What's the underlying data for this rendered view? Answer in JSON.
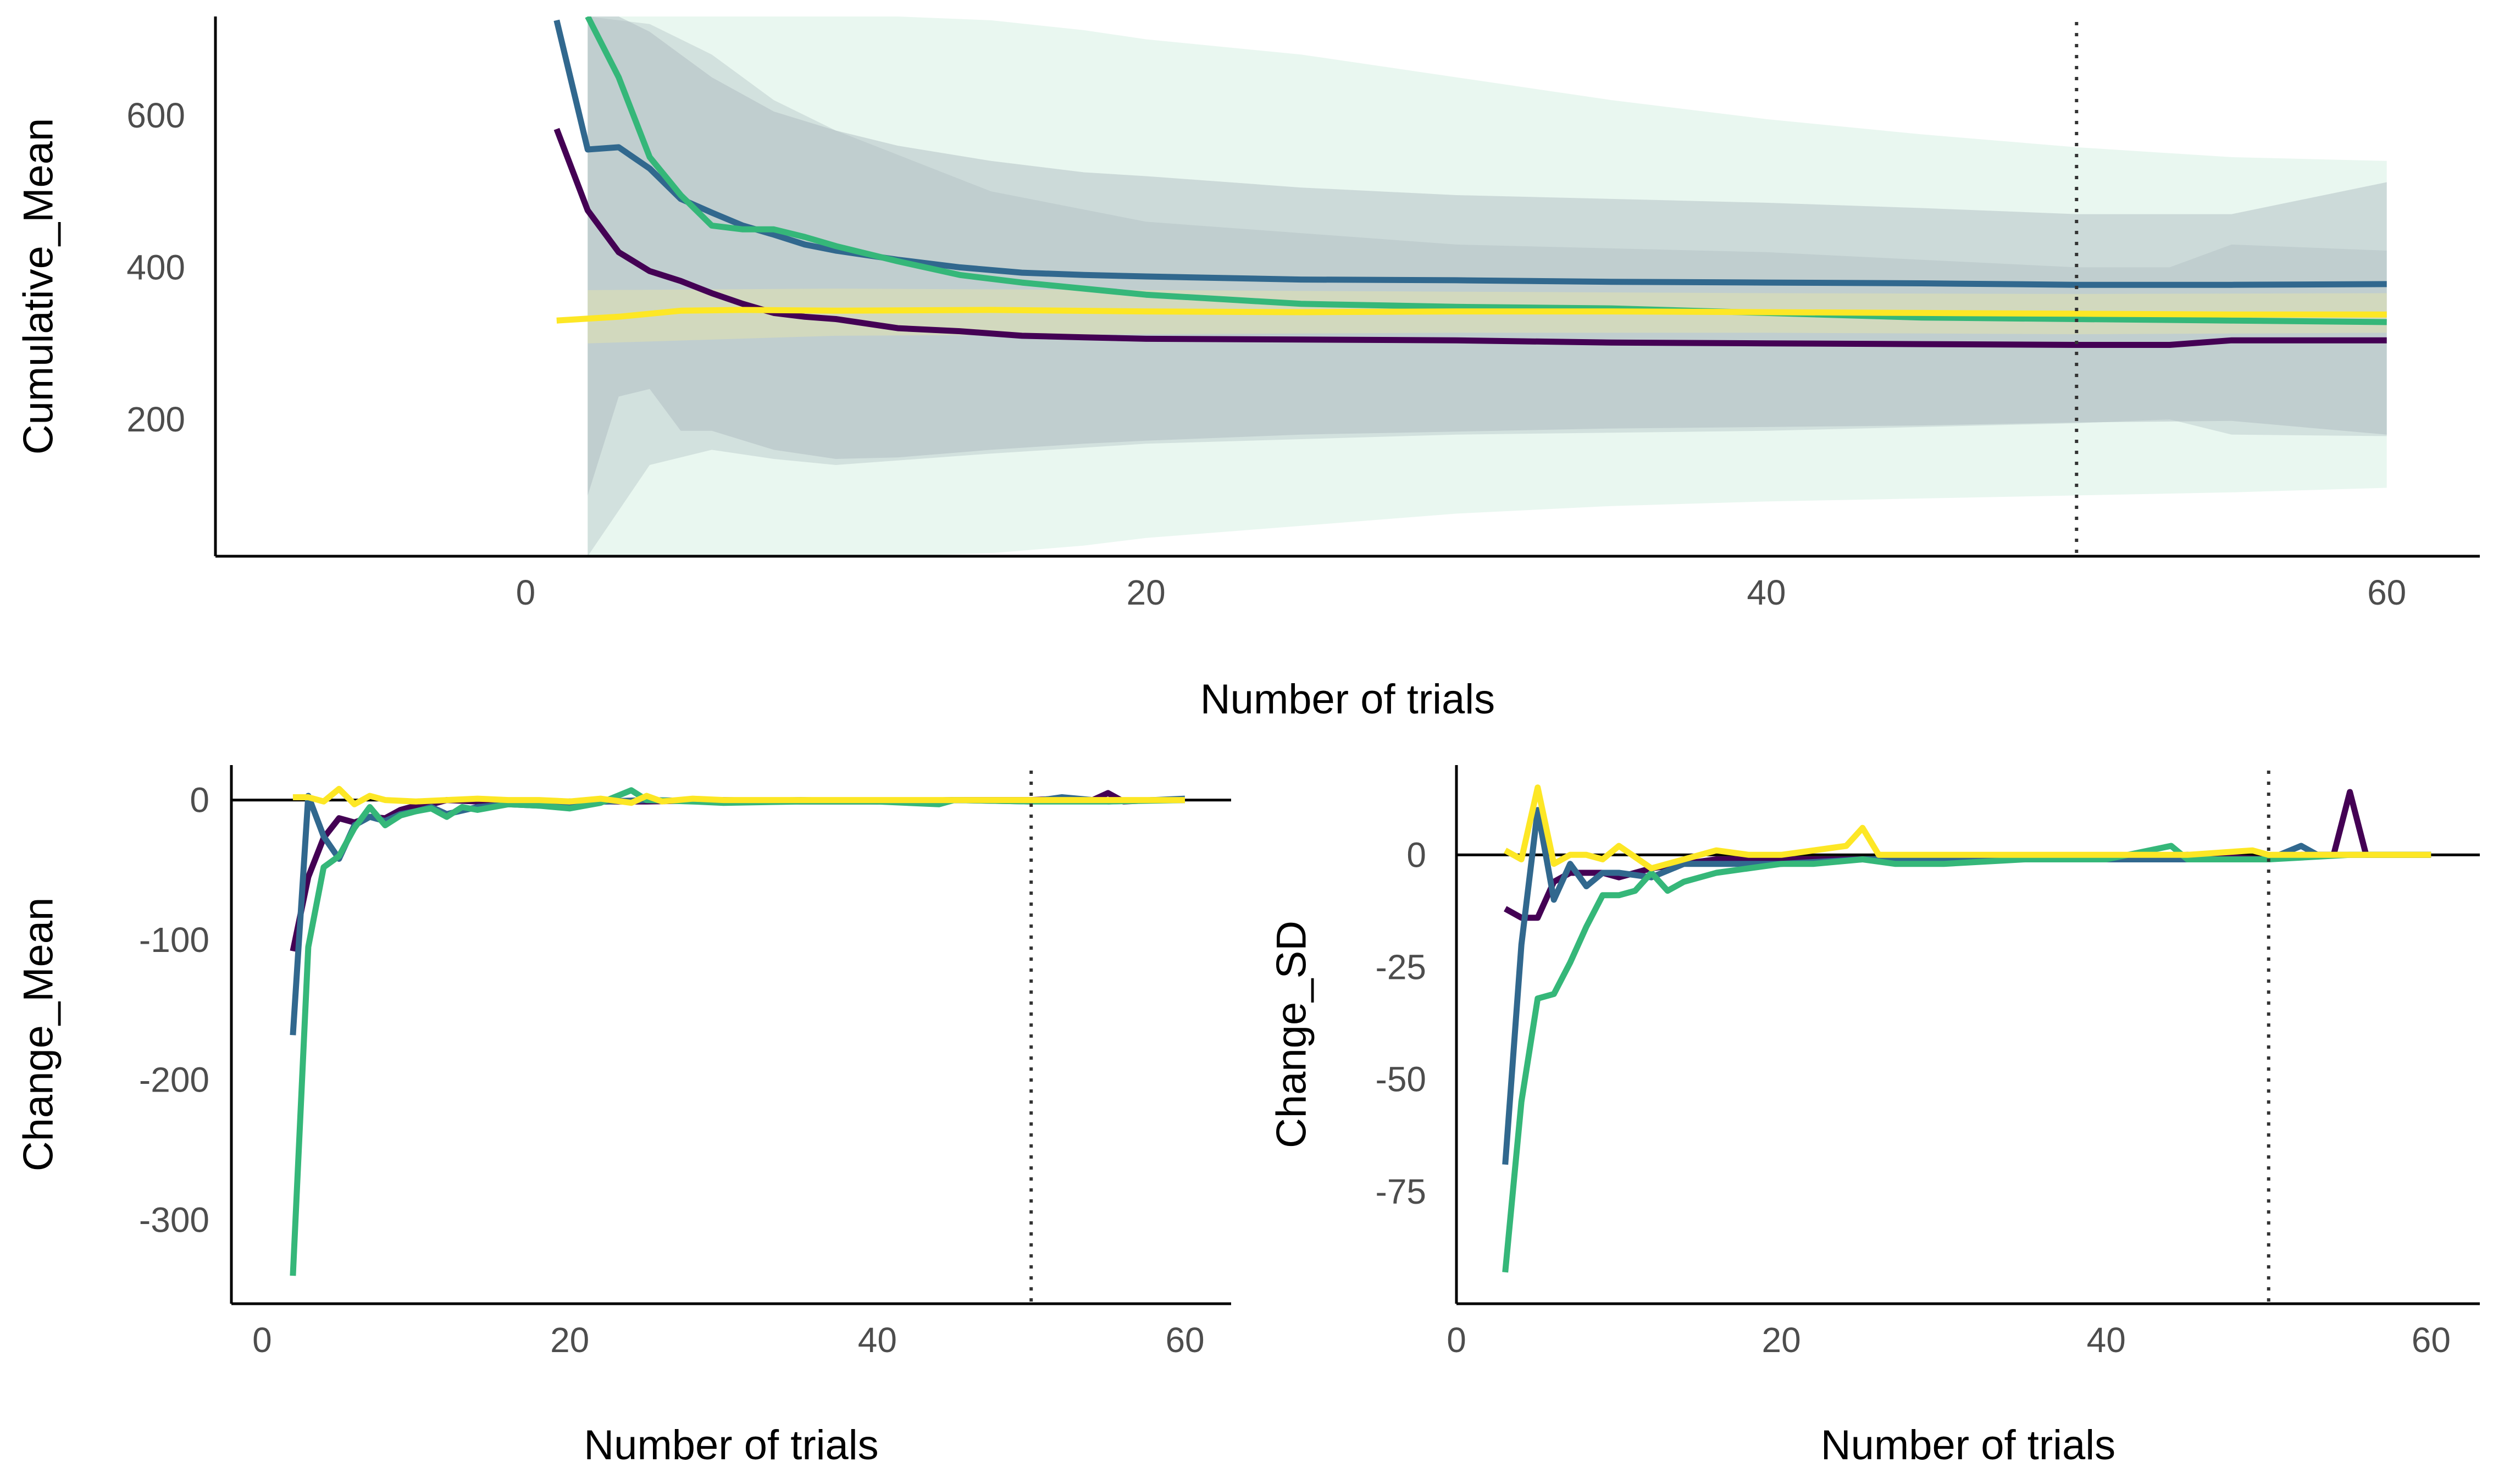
{
  "colors": {
    "series_1": "#440154",
    "series_2": "#31688E",
    "series_3": "#35B779",
    "series_4": "#FDE725",
    "band_light": "#D7F0E3",
    "band_dark": "#A9B6BD",
    "reference_line": "#333333",
    "axis": "#000000"
  },
  "chart_data": [
    {
      "type": "line",
      "xlabel": "Number of trials",
      "ylabel": "Cumulative_Mean",
      "xlim": [
        -10,
        63
      ],
      "ylim": [
        20,
        730
      ],
      "xticks": [
        0,
        20,
        40,
        60
      ],
      "yticks": [
        200,
        400,
        600
      ],
      "reference_x": 50,
      "bands": [
        {
          "x": [
            2,
            3,
            4,
            5,
            6,
            8,
            10,
            12,
            15,
            18,
            20,
            25,
            30,
            35,
            40,
            45,
            50,
            55,
            60
          ],
          "lower": [
            20,
            20,
            20,
            20,
            20,
            20,
            20,
            20,
            24,
            34,
            44,
            60,
            76,
            86,
            92,
            96,
            100,
            104,
            110
          ],
          "upper": [
            730,
            730,
            730,
            730,
            730,
            730,
            730,
            730,
            725,
            712,
            700,
            680,
            650,
            620,
            595,
            575,
            558,
            545,
            540
          ]
        },
        {
          "x": [
            2,
            3,
            4,
            5,
            6,
            8,
            10,
            12,
            15,
            18,
            20,
            25,
            30,
            35,
            40,
            45,
            50,
            55,
            60
          ],
          "lower": [
            100,
            230,
            240,
            185,
            185,
            160,
            148,
            150,
            160,
            168,
            172,
            180,
            184,
            188,
            190,
            192,
            196,
            198,
            180
          ],
          "upper": [
            730,
            730,
            710,
            680,
            650,
            605,
            580,
            560,
            540,
            525,
            520,
            505,
            495,
            490,
            485,
            478,
            470,
            470,
            512
          ]
        },
        {
          "x": [
            2,
            4,
            6,
            8,
            10,
            15,
            20,
            30,
            40,
            50,
            53,
            55,
            60
          ],
          "lower": [
            20,
            140,
            160,
            148,
            140,
            155,
            168,
            180,
            185,
            195,
            200,
            180,
            178
          ],
          "upper": [
            730,
            720,
            680,
            620,
            580,
            500,
            460,
            430,
            420,
            400,
            400,
            430,
            422
          ]
        },
        {
          "x": [
            2,
            10,
            20,
            30,
            40,
            50,
            60
          ],
          "lower": [
            300,
            310,
            312,
            314,
            314,
            312,
            314
          ],
          "upper": [
            370,
            372,
            370,
            368,
            366,
            365,
            366
          ]
        }
      ],
      "series": [
        {
          "x": [
            1,
            2,
            3,
            4,
            5,
            6,
            7,
            8,
            9,
            10,
            12,
            14,
            16,
            18,
            20,
            25,
            30,
            35,
            40,
            45,
            50,
            53,
            55,
            60
          ],
          "values": [
            582,
            475,
            420,
            395,
            382,
            366,
            352,
            340,
            335,
            332,
            320,
            316,
            310,
            308,
            306,
            305,
            304,
            301,
            300,
            299,
            298,
            298,
            304,
            304
          ]
        },
        {
          "x": [
            1,
            2,
            3,
            4,
            5,
            6,
            7,
            8,
            9,
            10,
            12,
            14,
            16,
            18,
            20,
            25,
            30,
            35,
            40,
            45,
            50,
            55,
            60
          ],
          "values": [
            725,
            555,
            558,
            530,
            490,
            472,
            455,
            443,
            430,
            422,
            410,
            400,
            393,
            390,
            388,
            384,
            383,
            381,
            380,
            379,
            377,
            377,
            378
          ]
        },
        {
          "x": [
            2,
            3,
            4,
            5,
            6,
            7,
            8,
            9,
            10,
            12,
            14,
            16,
            18,
            20,
            25,
            30,
            35,
            40,
            45,
            50,
            55,
            60
          ],
          "values": [
            730,
            650,
            545,
            495,
            455,
            450,
            450,
            440,
            428,
            408,
            390,
            380,
            372,
            364,
            352,
            348,
            346,
            340,
            334,
            332,
            330,
            328
          ]
        },
        {
          "x": [
            1,
            3,
            5,
            7,
            10,
            15,
            20,
            25,
            30,
            35,
            40,
            45,
            50,
            55,
            60
          ],
          "values": [
            330,
            335,
            343,
            344,
            343,
            344,
            342,
            341,
            342,
            342,
            341,
            340,
            339,
            338,
            338
          ]
        }
      ]
    },
    {
      "type": "line",
      "xlabel": "Number of trials",
      "ylabel": "Change_Mean",
      "xlim": [
        -2,
        63
      ],
      "ylim": [
        -360,
        25
      ],
      "xticks": [
        0,
        20,
        40,
        60
      ],
      "yticks": [
        0,
        -100,
        -200,
        -300
      ],
      "reference_x": 50,
      "series": [
        {
          "x": [
            2,
            3,
            4,
            5,
            6,
            7,
            8,
            9,
            10,
            11,
            12,
            14,
            16,
            18,
            20,
            25,
            30,
            35,
            40,
            45,
            50,
            52,
            54,
            55,
            56,
            58,
            60
          ],
          "values": [
            -108,
            -55,
            -27,
            -13,
            -16,
            -12,
            -13,
            -7,
            -4,
            -3,
            0,
            -1,
            -2,
            -3,
            -1,
            -1,
            0,
            -1,
            -1,
            0,
            0,
            1,
            0,
            5,
            -1,
            0,
            0
          ]
        },
        {
          "x": [
            2,
            3,
            4,
            5,
            6,
            7,
            8,
            9,
            10,
            11,
            12,
            14,
            16,
            18,
            20,
            25,
            30,
            35,
            40,
            45,
            50,
            52,
            55,
            58,
            60
          ],
          "values": [
            -168,
            3,
            -26,
            -42,
            -18,
            -12,
            -15,
            -10,
            -8,
            -5,
            -10,
            -5,
            -3,
            -4,
            -2,
            0,
            -1,
            0,
            -1,
            0,
            -1,
            2,
            -1,
            0,
            1
          ]
        },
        {
          "x": [
            2,
            3,
            4,
            5,
            6,
            7,
            8,
            9,
            10,
            11,
            12,
            13,
            14,
            16,
            18,
            20,
            22,
            24,
            25,
            28,
            30,
            35,
            40,
            44,
            45,
            50,
            55,
            60
          ],
          "values": [
            -340,
            -105,
            -48,
            -40,
            -20,
            -5,
            -18,
            -11,
            -8,
            -6,
            -12,
            -5,
            -7,
            -3,
            -4,
            -6,
            -2,
            7,
            0,
            -1,
            -2,
            -1,
            -1,
            -3,
            0,
            -1,
            -1,
            0
          ]
        },
        {
          "x": [
            2,
            3,
            4,
            5,
            6,
            7,
            8,
            10,
            12,
            14,
            16,
            18,
            20,
            22,
            24,
            25,
            26,
            28,
            30,
            35,
            40,
            45,
            50,
            55,
            60
          ],
          "values": [
            2,
            2,
            -1,
            8,
            -3,
            3,
            0,
            -1,
            0,
            1,
            0,
            0,
            -1,
            1,
            -2,
            3,
            -1,
            1,
            0,
            0,
            0,
            0,
            0,
            0,
            0
          ]
        }
      ]
    },
    {
      "type": "line",
      "xlabel": "Number of trials",
      "ylabel": "Change_SD",
      "xlim": [
        0,
        63
      ],
      "ylim": [
        -100,
        20
      ],
      "xticks": [
        0,
        20,
        40,
        60
      ],
      "yticks": [
        0,
        -25,
        -50,
        -75
      ],
      "reference_x": 50,
      "series": [
        {
          "x": [
            3,
            4,
            5,
            6,
            7,
            8,
            9,
            10,
            12,
            14,
            16,
            18,
            20,
            25,
            30,
            35,
            40,
            45,
            50,
            52,
            54,
            55,
            56,
            58,
            60
          ],
          "values": [
            -12,
            -14,
            -14,
            -6,
            -4,
            -4,
            -4,
            -5,
            -3,
            -2,
            -1,
            -1,
            -1,
            -1,
            -1,
            -1,
            -1,
            0,
            -1,
            0,
            0,
            14,
            0,
            0,
            0
          ]
        },
        {
          "x": [
            3,
            4,
            5,
            6,
            7,
            8,
            9,
            10,
            12,
            14,
            16,
            18,
            20,
            25,
            30,
            35,
            40,
            45,
            50,
            52,
            53,
            55,
            58,
            60
          ],
          "values": [
            -69,
            -20,
            10,
            -10,
            -2,
            -7,
            -4,
            -4,
            -5,
            -2,
            -2,
            -2,
            -2,
            -1,
            -1,
            -1,
            -1,
            -1,
            -1,
            2,
            0,
            0,
            0,
            0
          ]
        },
        {
          "x": [
            3,
            4,
            5,
            6,
            7,
            8,
            9,
            10,
            11,
            12,
            13,
            14,
            16,
            18,
            20,
            22,
            25,
            27,
            30,
            35,
            40,
            44,
            45,
            50,
            55,
            60
          ],
          "values": [
            -93,
            -55,
            -32,
            -31,
            -24,
            -16,
            -9,
            -9,
            -8,
            -4,
            -8,
            -6,
            -4,
            -3,
            -2,
            -2,
            -1,
            -2,
            -2,
            -1,
            -1,
            2,
            -1,
            -1,
            0,
            0
          ]
        },
        {
          "x": [
            3,
            4,
            5,
            6,
            7,
            8,
            9,
            10,
            12,
            14,
            16,
            18,
            20,
            22,
            24,
            25,
            26,
            28,
            30,
            35,
            40,
            45,
            49,
            50,
            55,
            60
          ],
          "values": [
            1,
            -1,
            15,
            -2,
            0,
            0,
            -1,
            2,
            -3,
            -1,
            1,
            0,
            0,
            1,
            2,
            6,
            0,
            0,
            0,
            0,
            0,
            0,
            1,
            0,
            0,
            0
          ]
        }
      ]
    }
  ]
}
